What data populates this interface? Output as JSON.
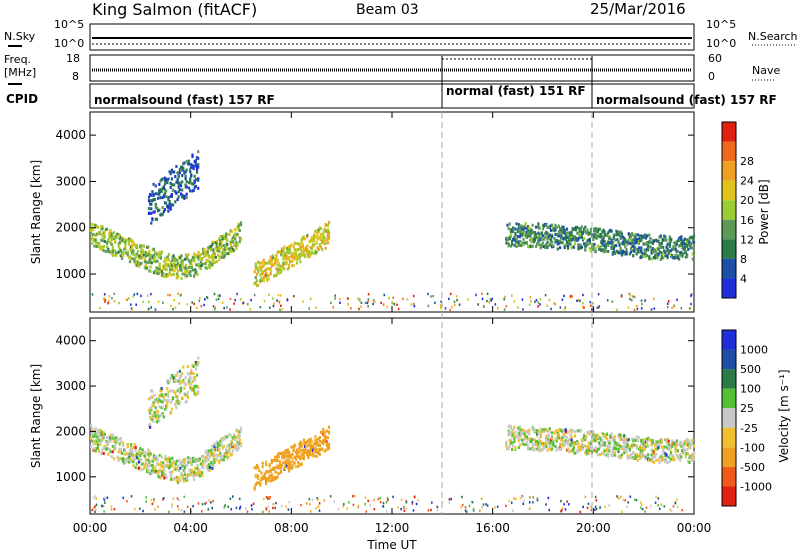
{
  "header": {
    "station": "King Salmon (fitACF)",
    "beam": "Beam 03",
    "date": "25/Mar/2016"
  },
  "summary_panel": {
    "left_top_label": "N.Sky",
    "left_mid_label": "Freq.",
    "left_mid_unit": "[MHz]",
    "left_bottom_label": "CPID",
    "right_top_label": "N.Search",
    "right_mid_label": "Nave",
    "nsky_ticks": [
      "10^5",
      "10^0"
    ],
    "nsearch_ticks": [
      "10^5",
      "10^0"
    ],
    "freq_ticks": [
      "18",
      "8"
    ],
    "nave_ticks": [
      "60",
      "0"
    ],
    "cpid_segments": [
      {
        "label": "normalsound (fast) 157 RF",
        "start_hour": 0,
        "end_hour": 14
      },
      {
        "label": "normal (fast) 151 RF",
        "start_hour": 14,
        "end_hour": 20
      },
      {
        "label": "normalsound (fast) 157 RF",
        "start_hour": 20,
        "end_hour": 24
      }
    ]
  },
  "xaxis": {
    "label": "Time UT",
    "ticks": [
      "00:00",
      "04:00",
      "08:00",
      "12:00",
      "16:00",
      "20:00",
      "00:00"
    ]
  },
  "power_panel": {
    "ylabel": "Slant Range [km]",
    "yticks": [
      "1000",
      "2000",
      "3000",
      "4000"
    ],
    "colorbar_label": "Power [dB]",
    "colorbar_ticks": [
      "4",
      "8",
      "12",
      "16",
      "20",
      "24",
      "28"
    ],
    "colors": [
      "#1e2edc",
      "#1d4fa6",
      "#2a7a4a",
      "#5a9a55",
      "#9acd32",
      "#e0c21a",
      "#f0a020",
      "#ef6a1a",
      "#e02010"
    ]
  },
  "velocity_panel": {
    "ylabel": "Slant Range [km]",
    "yticks": [
      "1000",
      "2000",
      "3000",
      "4000"
    ],
    "colorbar_label": "Velocity [m s⁻¹]",
    "colorbar_ticks": [
      "1000",
      "500",
      "100",
      "25",
      "-25",
      "-100",
      "-500",
      "-1000"
    ],
    "colors": [
      "#1e2edc",
      "#1d4fa6",
      "#2a7a4a",
      "#56c035",
      "#c8c8c8",
      "#f0c030",
      "#f0a020",
      "#ef5a1a",
      "#e02010"
    ]
  },
  "chart_data": [
    {
      "type": "heatmap",
      "name": "power",
      "xlim": [
        0,
        24
      ],
      "ylim": [
        180,
        4500
      ],
      "zlim": [
        0,
        30
      ],
      "bands": [
        {
          "t_start": 0,
          "t_end": 6.0,
          "range_km": [
            1900,
            1700,
            1500,
            1300,
            1150,
            1250,
            1600,
            1900
          ],
          "value_db": 14
        },
        {
          "t_start": 2.3,
          "t_end": 4.3,
          "range_km": [
            2500,
            3300
          ],
          "value_db": 6
        },
        {
          "t_start": 6.5,
          "t_end": 9.5,
          "range_km": [
            1000,
            1450,
            1900
          ],
          "value_db": 18
        },
        {
          "t_start": 16.5,
          "t_end": 24,
          "range_km": [
            1900,
            1850,
            1800,
            1700,
            1600,
            1600
          ],
          "value_db": 9
        }
      ]
    },
    {
      "type": "heatmap",
      "name": "velocity",
      "xlim": [
        0,
        24
      ],
      "ylim": [
        180,
        4500
      ],
      "zlim": [
        -1000,
        1000
      ],
      "bands": [
        {
          "t_start": 0,
          "t_end": 6.0,
          "range_km": [
            1900,
            1700,
            1500,
            1300,
            1150,
            1250,
            1600,
            1900
          ],
          "value_ms": 0
        },
        {
          "t_start": 2.3,
          "t_end": 4.3,
          "range_km": [
            2500,
            3300
          ],
          "value_ms": 0
        },
        {
          "t_start": 6.5,
          "t_end": 9.5,
          "range_km": [
            1000,
            1450,
            1900
          ],
          "value_ms": -150
        },
        {
          "t_start": 16.5,
          "t_end": 24,
          "range_km": [
            1900,
            1850,
            1800,
            1700,
            1600,
            1600
          ],
          "value_ms": 0
        }
      ]
    }
  ]
}
